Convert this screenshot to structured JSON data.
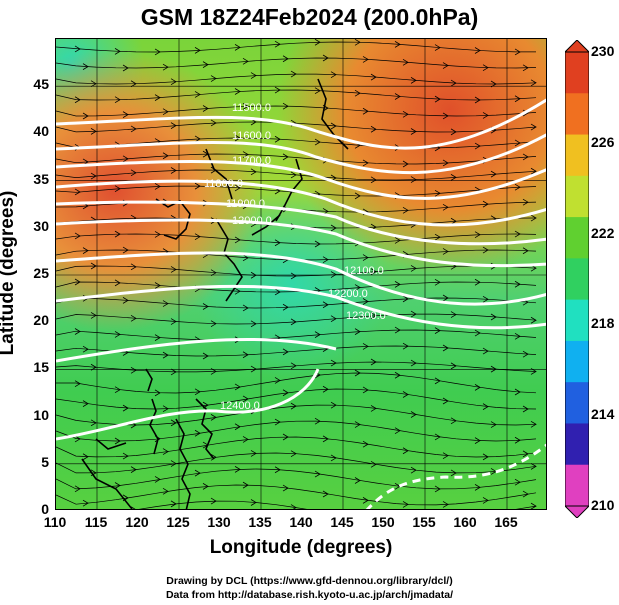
{
  "title": "GSM 18Z24Feb2024 (200.0hPa)",
  "axes": {
    "xlabel": "Longitude (degrees)",
    "ylabel": "Latitude  (degrees)",
    "xticks": [
      "110",
      "115",
      "120",
      "125",
      "130",
      "135",
      "140",
      "145",
      "150",
      "155",
      "160",
      "165"
    ],
    "yticks": [
      "0",
      "5",
      "10",
      "15",
      "20",
      "25",
      "30",
      "35",
      "40",
      "45"
    ],
    "xrange": [
      110,
      170
    ],
    "yrange": [
      0,
      50
    ]
  },
  "colorbar": {
    "ticks": [
      "230",
      "226",
      "222",
      "218",
      "214",
      "210"
    ],
    "range": [
      210,
      230
    ],
    "colors": [
      "#e040c0",
      "#3020b0",
      "#2060e0",
      "#10b0f0",
      "#20e0c0",
      "#30d060",
      "#60d030",
      "#c0e030",
      "#f0c020",
      "#f07020",
      "#e04020"
    ]
  },
  "contour_labels": [
    "11500.0",
    "11600.0",
    "11700.0",
    "11800.0",
    "11900.0",
    "12000.0",
    "12100.0",
    "12200.0",
    "12300.0",
    "12400.0"
  ],
  "credits": {
    "line1": "Drawing by DCL (https://www.gfd-dennou.org/library/dcl/)",
    "line2": "Data from http://database.rish.kyoto-u.ac.jp/arch/jmadata/"
  },
  "chart_data": {
    "type": "heatmap",
    "title": "GSM 18Z24Feb2024 (200.0hPa)",
    "xlabel": "Longitude (degrees)",
    "ylabel": "Latitude  (degrees)",
    "xlim": [
      110,
      170
    ],
    "ylim": [
      0,
      50
    ],
    "colorbar_range": [
      210,
      230
    ],
    "field_samples": [
      {
        "lon": 112,
        "lat": 48,
        "value": 221
      },
      {
        "lon": 130,
        "lat": 48,
        "value": 223
      },
      {
        "lon": 150,
        "lat": 48,
        "value": 226
      },
      {
        "lon": 158,
        "lat": 42,
        "value": 228
      },
      {
        "lon": 120,
        "lat": 35,
        "value": 228
      },
      {
        "lon": 145,
        "lat": 38,
        "value": 226
      },
      {
        "lon": 140,
        "lat": 28,
        "value": 222
      },
      {
        "lon": 132,
        "lat": 25,
        "value": 220
      },
      {
        "lon": 150,
        "lat": 22,
        "value": 222
      },
      {
        "lon": 120,
        "lat": 15,
        "value": 222
      },
      {
        "lon": 140,
        "lat": 8,
        "value": 222
      },
      {
        "lon": 160,
        "lat": 5,
        "value": 223
      }
    ],
    "contour_levels": [
      11500,
      11600,
      11700,
      11800,
      11900,
      12000,
      12100,
      12200,
      12300,
      12400
    ]
  }
}
